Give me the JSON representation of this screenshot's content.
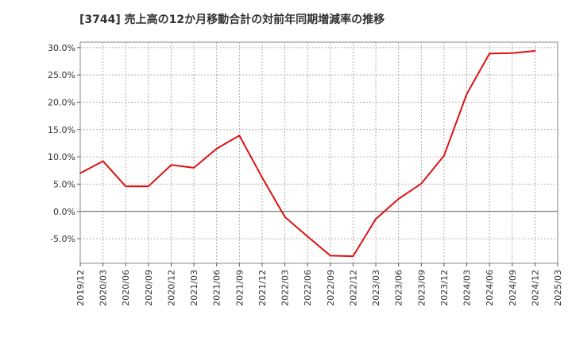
{
  "chart_data": {
    "type": "line",
    "title": "[3744]  売上高の12か月移動合計の対前年同期増減率の推移",
    "xlabel": "",
    "ylabel": "",
    "ylim": [
      -9.5,
      31.0
    ],
    "yticks": [
      -5.0,
      0.0,
      5.0,
      10.0,
      15.0,
      20.0,
      25.0,
      30.0
    ],
    "ytick_labels": [
      "-5.0%",
      "0.0%",
      "5.0%",
      "10.0%",
      "15.0%",
      "20.0%",
      "25.0%",
      "30.0%"
    ],
    "categories": [
      "2019/12",
      "2020/03",
      "2020/06",
      "2020/09",
      "2020/12",
      "2021/03",
      "2021/06",
      "2021/09",
      "2021/12",
      "2022/03",
      "2022/06",
      "2022/09",
      "2022/12",
      "2023/03",
      "2023/06",
      "2023/09",
      "2023/12",
      "2024/03",
      "2024/06",
      "2024/09",
      "2024/12",
      "2025/03"
    ],
    "grid": true,
    "series": [
      {
        "name": "対前年同期増減率",
        "color": "#dd1111",
        "values": [
          7.0,
          9.2,
          4.6,
          4.6,
          8.5,
          8.0,
          11.5,
          13.9,
          6.2,
          -1.0,
          -4.6,
          -8.1,
          -8.2,
          -1.4,
          2.3,
          5.1,
          10.2,
          21.5,
          28.9,
          29.0,
          29.4,
          null
        ]
      }
    ]
  }
}
